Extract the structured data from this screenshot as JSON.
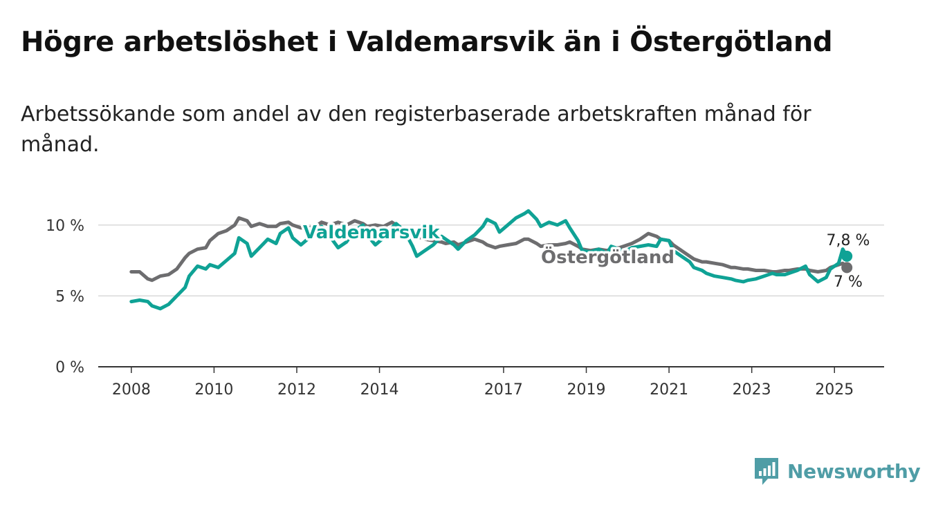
{
  "header": {
    "title": "Högre arbetslöshet i Valdemarsvik än i Östergötland",
    "subtitle": "Arbetssökande som andel av den registerbaserade arbetskraften månad för månad."
  },
  "brand": {
    "name": "Newsworthy",
    "icon": "bar-chart-logo-icon",
    "color": "#4f9da6"
  },
  "chart_data": {
    "type": "line",
    "ylim": [
      0,
      11.5
    ],
    "yticks": [
      {
        "value": 0,
        "label": "0 %"
      },
      {
        "value": 5,
        "label": "5 %"
      },
      {
        "value": 10,
        "label": "10 %"
      }
    ],
    "xlim": [
      2007.2,
      2026.2
    ],
    "xticks": [
      {
        "value": 2008,
        "label": "2008"
      },
      {
        "value": 2010,
        "label": "2010"
      },
      {
        "value": 2012,
        "label": "2012"
      },
      {
        "value": 2014,
        "label": "2014"
      },
      {
        "value": 2017,
        "label": "2017"
      },
      {
        "value": 2019,
        "label": "2019"
      },
      {
        "value": 2021,
        "label": "2021"
      },
      {
        "value": 2023,
        "label": "2023"
      },
      {
        "value": 2025,
        "label": "2025"
      }
    ],
    "grid": true,
    "series": [
      {
        "name": "Valdemarsvik",
        "color": "#0fa295",
        "end_label": "7,8 %",
        "points": [
          [
            2008.0,
            4.6
          ],
          [
            2008.2,
            4.7
          ],
          [
            2008.4,
            4.6
          ],
          [
            2008.5,
            4.3
          ],
          [
            2008.7,
            4.1
          ],
          [
            2008.9,
            4.4
          ],
          [
            2009.1,
            5.0
          ],
          [
            2009.3,
            5.6
          ],
          [
            2009.4,
            6.4
          ],
          [
            2009.6,
            7.1
          ],
          [
            2009.8,
            6.9
          ],
          [
            2009.9,
            7.2
          ],
          [
            2010.1,
            7.0
          ],
          [
            2010.3,
            7.5
          ],
          [
            2010.5,
            8.0
          ],
          [
            2010.6,
            9.1
          ],
          [
            2010.8,
            8.7
          ],
          [
            2010.9,
            7.8
          ],
          [
            2011.1,
            8.4
          ],
          [
            2011.3,
            9.0
          ],
          [
            2011.5,
            8.7
          ],
          [
            2011.6,
            9.4
          ],
          [
            2011.8,
            9.8
          ],
          [
            2011.9,
            9.1
          ],
          [
            2012.1,
            8.6
          ],
          [
            2012.3,
            9.1
          ],
          [
            2012.5,
            9.5
          ],
          [
            2012.6,
            9.9
          ],
          [
            2012.8,
            9.2
          ],
          [
            2013.0,
            8.4
          ],
          [
            2013.2,
            8.8
          ],
          [
            2013.4,
            9.6
          ],
          [
            2013.6,
            10.0
          ],
          [
            2013.7,
            9.3
          ],
          [
            2013.9,
            8.6
          ],
          [
            2014.1,
            9.1
          ],
          [
            2014.3,
            9.8
          ],
          [
            2014.4,
            10.1
          ],
          [
            2014.6,
            9.6
          ],
          [
            2014.8,
            8.5
          ],
          [
            2014.9,
            7.8
          ],
          [
            2015.1,
            8.2
          ],
          [
            2015.3,
            8.6
          ],
          [
            2015.5,
            9.2
          ],
          [
            2015.6,
            9.0
          ],
          [
            2015.8,
            8.6
          ],
          [
            2015.9,
            8.3
          ],
          [
            2016.1,
            8.9
          ],
          [
            2016.3,
            9.3
          ],
          [
            2016.5,
            9.9
          ],
          [
            2016.6,
            10.4
          ],
          [
            2016.8,
            10.1
          ],
          [
            2016.9,
            9.5
          ],
          [
            2017.1,
            10.0
          ],
          [
            2017.3,
            10.5
          ],
          [
            2017.5,
            10.8
          ],
          [
            2017.6,
            11.0
          ],
          [
            2017.8,
            10.4
          ],
          [
            2017.9,
            9.9
          ],
          [
            2018.1,
            10.2
          ],
          [
            2018.3,
            10.0
          ],
          [
            2018.5,
            10.3
          ],
          [
            2018.6,
            9.8
          ],
          [
            2018.8,
            8.9
          ],
          [
            2018.9,
            8.2
          ],
          [
            2019.1,
            8.1
          ],
          [
            2019.3,
            8.3
          ],
          [
            2019.5,
            8.0
          ],
          [
            2019.6,
            8.5
          ],
          [
            2019.8,
            8.3
          ],
          [
            2019.9,
            8.1
          ],
          [
            2020.1,
            8.4
          ],
          [
            2020.3,
            8.5
          ],
          [
            2020.5,
            8.6
          ],
          [
            2020.7,
            8.5
          ],
          [
            2020.8,
            9.0
          ],
          [
            2021.0,
            8.9
          ],
          [
            2021.1,
            8.2
          ],
          [
            2021.3,
            7.8
          ],
          [
            2021.5,
            7.4
          ],
          [
            2021.6,
            7.0
          ],
          [
            2021.8,
            6.8
          ],
          [
            2021.9,
            6.6
          ],
          [
            2022.1,
            6.4
          ],
          [
            2022.3,
            6.3
          ],
          [
            2022.5,
            6.2
          ],
          [
            2022.6,
            6.1
          ],
          [
            2022.8,
            6.0
          ],
          [
            2022.9,
            6.1
          ],
          [
            2023.1,
            6.2
          ],
          [
            2023.3,
            6.4
          ],
          [
            2023.5,
            6.6
          ],
          [
            2023.6,
            6.5
          ],
          [
            2023.8,
            6.5
          ],
          [
            2023.9,
            6.6
          ],
          [
            2024.1,
            6.8
          ],
          [
            2024.3,
            7.1
          ],
          [
            2024.4,
            6.5
          ],
          [
            2024.6,
            6.0
          ],
          [
            2024.8,
            6.3
          ],
          [
            2024.9,
            6.9
          ],
          [
            2025.1,
            7.3
          ],
          [
            2025.2,
            8.3
          ],
          [
            2025.3,
            7.8
          ]
        ]
      },
      {
        "name": "Östergötland",
        "color": "#6d6d6f",
        "end_label": "7 %",
        "points": [
          [
            2008.0,
            6.7
          ],
          [
            2008.2,
            6.7
          ],
          [
            2008.4,
            6.2
          ],
          [
            2008.5,
            6.1
          ],
          [
            2008.7,
            6.4
          ],
          [
            2008.9,
            6.5
          ],
          [
            2009.1,
            6.9
          ],
          [
            2009.3,
            7.7
          ],
          [
            2009.4,
            8.0
          ],
          [
            2009.6,
            8.3
          ],
          [
            2009.8,
            8.4
          ],
          [
            2009.9,
            8.9
          ],
          [
            2010.1,
            9.4
          ],
          [
            2010.3,
            9.6
          ],
          [
            2010.5,
            10.0
          ],
          [
            2010.6,
            10.5
          ],
          [
            2010.8,
            10.3
          ],
          [
            2010.9,
            9.9
          ],
          [
            2011.1,
            10.1
          ],
          [
            2011.3,
            9.9
          ],
          [
            2011.5,
            9.9
          ],
          [
            2011.6,
            10.1
          ],
          [
            2011.8,
            10.2
          ],
          [
            2011.9,
            10.0
          ],
          [
            2012.1,
            9.8
          ],
          [
            2012.3,
            9.8
          ],
          [
            2012.5,
            10.0
          ],
          [
            2012.6,
            10.2
          ],
          [
            2012.8,
            10.0
          ],
          [
            2013.0,
            10.2
          ],
          [
            2013.2,
            10.0
          ],
          [
            2013.4,
            10.3
          ],
          [
            2013.6,
            10.1
          ],
          [
            2013.7,
            9.9
          ],
          [
            2013.9,
            10.0
          ],
          [
            2014.1,
            9.9
          ],
          [
            2014.3,
            10.2
          ],
          [
            2014.4,
            10.0
          ],
          [
            2014.6,
            9.6
          ],
          [
            2014.8,
            9.4
          ],
          [
            2014.9,
            9.2
          ],
          [
            2015.1,
            9.0
          ],
          [
            2015.3,
            8.9
          ],
          [
            2015.5,
            8.8
          ],
          [
            2015.6,
            8.7
          ],
          [
            2015.8,
            8.8
          ],
          [
            2015.9,
            8.6
          ],
          [
            2016.1,
            8.8
          ],
          [
            2016.3,
            9.0
          ],
          [
            2016.5,
            8.8
          ],
          [
            2016.6,
            8.6
          ],
          [
            2016.8,
            8.4
          ],
          [
            2016.9,
            8.5
          ],
          [
            2017.1,
            8.6
          ],
          [
            2017.3,
            8.7
          ],
          [
            2017.5,
            9.0
          ],
          [
            2017.6,
            9.0
          ],
          [
            2017.8,
            8.7
          ],
          [
            2017.9,
            8.5
          ],
          [
            2018.1,
            8.6
          ],
          [
            2018.3,
            8.6
          ],
          [
            2018.5,
            8.7
          ],
          [
            2018.6,
            8.8
          ],
          [
            2018.8,
            8.5
          ],
          [
            2018.9,
            8.3
          ],
          [
            2019.1,
            8.2
          ],
          [
            2019.3,
            8.3
          ],
          [
            2019.5,
            8.2
          ],
          [
            2019.6,
            8.3
          ],
          [
            2019.8,
            8.4
          ],
          [
            2019.9,
            8.5
          ],
          [
            2020.1,
            8.7
          ],
          [
            2020.3,
            9.0
          ],
          [
            2020.5,
            9.4
          ],
          [
            2020.7,
            9.2
          ],
          [
            2020.8,
            9.0
          ],
          [
            2021.0,
            8.9
          ],
          [
            2021.1,
            8.6
          ],
          [
            2021.3,
            8.2
          ],
          [
            2021.5,
            7.8
          ],
          [
            2021.6,
            7.6
          ],
          [
            2021.8,
            7.4
          ],
          [
            2021.9,
            7.4
          ],
          [
            2022.1,
            7.3
          ],
          [
            2022.3,
            7.2
          ],
          [
            2022.5,
            7.0
          ],
          [
            2022.6,
            7.0
          ],
          [
            2022.8,
            6.9
          ],
          [
            2022.9,
            6.9
          ],
          [
            2023.1,
            6.8
          ],
          [
            2023.3,
            6.8
          ],
          [
            2023.5,
            6.7
          ],
          [
            2023.6,
            6.7
          ],
          [
            2023.8,
            6.8
          ],
          [
            2023.9,
            6.8
          ],
          [
            2024.1,
            6.9
          ],
          [
            2024.3,
            6.9
          ],
          [
            2024.4,
            6.8
          ],
          [
            2024.6,
            6.7
          ],
          [
            2024.8,
            6.8
          ],
          [
            2024.9,
            7.0
          ],
          [
            2025.1,
            7.2
          ],
          [
            2025.2,
            7.3
          ],
          [
            2025.3,
            7.0
          ]
        ]
      }
    ]
  }
}
